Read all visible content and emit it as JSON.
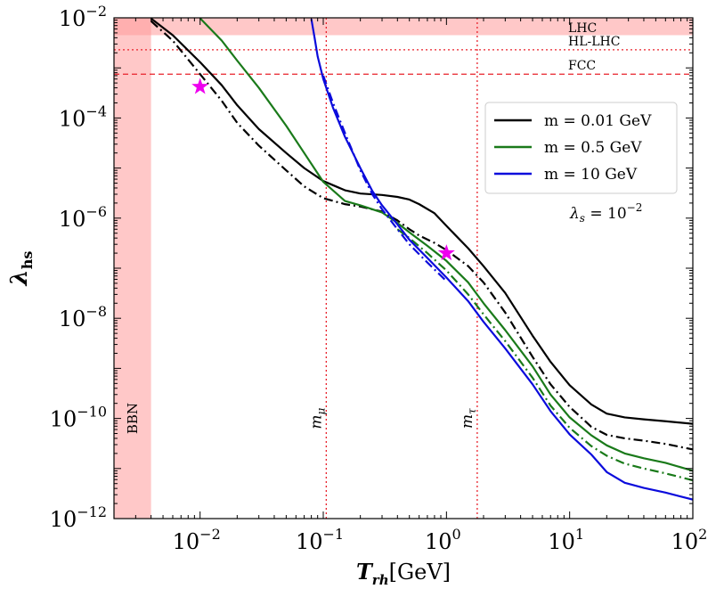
{
  "chart_data": {
    "type": "line",
    "x_scale": "log",
    "y_scale": "log",
    "xlim": [
      0.002,
      100
    ],
    "ylim": [
      1e-12,
      0.01
    ],
    "xlabel": {
      "main": "T",
      "sub": "rh",
      "unit": "[GeV]"
    },
    "ylabel": {
      "main": "λ",
      "sub": "hs"
    },
    "x_ticks": [
      {
        "value": 0.01,
        "base": "10",
        "exp": "−2"
      },
      {
        "value": 0.1,
        "base": "10",
        "exp": "−1"
      },
      {
        "value": 1,
        "base": "10",
        "exp": "0"
      },
      {
        "value": 10,
        "base": "10",
        "exp": "1"
      },
      {
        "value": 100,
        "base": "10",
        "exp": "2"
      }
    ],
    "y_ticks": [
      {
        "value": 1e-12,
        "base": "10",
        "exp": "−12"
      },
      {
        "value": 1e-10,
        "base": "10",
        "exp": "−10"
      },
      {
        "value": 1e-08,
        "base": "10",
        "exp": "−8"
      },
      {
        "value": 1e-06,
        "base": "10",
        "exp": "−6"
      },
      {
        "value": 0.0001,
        "base": "10",
        "exp": "−4"
      },
      {
        "value": 0.01,
        "base": "10",
        "exp": "−2"
      }
    ],
    "grid": false,
    "legend_position": "top-right",
    "series": [
      {
        "name": "m = 0.01 GeV",
        "legend": true,
        "color": "#000000",
        "dash": "solid",
        "points": [
          [
            0.004,
            0.0097
          ],
          [
            0.006,
            0.0045
          ],
          [
            0.01,
            0.0013
          ],
          [
            0.015,
            0.00045
          ],
          [
            0.02,
            0.00018
          ],
          [
            0.03,
            6e-05
          ],
          [
            0.05,
            2e-05
          ],
          [
            0.07,
            1e-05
          ],
          [
            0.1,
            5.5e-06
          ],
          [
            0.15,
            3.6e-06
          ],
          [
            0.2,
            3.1e-06
          ],
          [
            0.3,
            2.9e-06
          ],
          [
            0.4,
            2.65e-06
          ],
          [
            0.5,
            2.35e-06
          ],
          [
            0.6,
            1.9e-06
          ],
          [
            0.8,
            1.25e-06
          ],
          [
            1.0,
            7e-07
          ],
          [
            1.5,
            2.5e-07
          ],
          [
            2,
            1.1e-07
          ],
          [
            3,
            3.2e-08
          ],
          [
            5,
            4.5e-09
          ],
          [
            7,
            1.35e-09
          ],
          [
            10,
            4.6e-10
          ],
          [
            15,
            1.9e-10
          ],
          [
            20,
            1.25e-10
          ],
          [
            28,
            1.05e-10
          ],
          [
            40,
            9.6e-11
          ],
          [
            60,
            8.8e-11
          ],
          [
            100,
            7.8e-11
          ]
        ]
      },
      {
        "name": "m = 0.01 GeV",
        "legend": false,
        "color": "#000000",
        "dash": "dashdot",
        "points": [
          [
            0.004,
            0.0086
          ],
          [
            0.006,
            0.0035
          ],
          [
            0.01,
            0.00075
          ],
          [
            0.015,
            0.00022
          ],
          [
            0.02,
            8e-05
          ],
          [
            0.03,
            2.8e-05
          ],
          [
            0.05,
            9e-06
          ],
          [
            0.07,
            4.3e-06
          ],
          [
            0.1,
            2.5e-06
          ],
          [
            0.15,
            1.9e-06
          ],
          [
            0.2,
            1.7e-06
          ],
          [
            0.3,
            1.35e-06
          ],
          [
            0.4,
            9e-07
          ],
          [
            0.5,
            6e-07
          ],
          [
            0.6,
            4.5e-07
          ],
          [
            0.8,
            3.2e-07
          ],
          [
            1.0,
            2.3e-07
          ],
          [
            1.5,
            1.1e-07
          ],
          [
            2,
            5.2e-08
          ],
          [
            3,
            1.3e-08
          ],
          [
            5,
            1.7e-09
          ],
          [
            7,
            4.8e-10
          ],
          [
            10,
            1.7e-10
          ],
          [
            15,
            6.8e-11
          ],
          [
            20,
            4.7e-11
          ],
          [
            28,
            4e-11
          ],
          [
            40,
            3.6e-11
          ],
          [
            60,
            3.1e-11
          ],
          [
            100,
            2.4e-11
          ]
        ]
      },
      {
        "name": "m = 0.5 GeV",
        "legend": true,
        "color": "#1a7a1a",
        "dash": "solid",
        "points": [
          [
            0.01,
            0.0098
          ],
          [
            0.015,
            0.0035
          ],
          [
            0.02,
            0.0014
          ],
          [
            0.03,
            0.0004
          ],
          [
            0.05,
            7e-05
          ],
          [
            0.07,
            2e-05
          ],
          [
            0.1,
            5.3e-06
          ],
          [
            0.15,
            2.2e-06
          ],
          [
            0.2,
            1.8e-06
          ],
          [
            0.3,
            1.3e-06
          ],
          [
            0.4,
            8e-07
          ],
          [
            0.5,
            5.2e-07
          ],
          [
            0.7,
            2.8e-07
          ],
          [
            1.0,
            1.4e-07
          ],
          [
            1.5,
            5.2e-08
          ],
          [
            2,
            2e-08
          ],
          [
            3,
            5.8e-09
          ],
          [
            5,
            1.1e-09
          ],
          [
            7,
            3e-10
          ],
          [
            10,
            1.05e-10
          ],
          [
            15,
            4.6e-11
          ],
          [
            20,
            2.9e-11
          ],
          [
            28,
            2e-11
          ],
          [
            40,
            1.6e-11
          ],
          [
            60,
            1.3e-11
          ],
          [
            100,
            9e-12
          ]
        ]
      },
      {
        "name": "m = 0.5 GeV",
        "legend": false,
        "color": "#1a7a1a",
        "dash": "dashdot",
        "points": [
          [
            0.4,
            6e-07
          ],
          [
            0.5,
            4e-07
          ],
          [
            0.7,
            2e-07
          ],
          [
            1.0,
            9e-08
          ],
          [
            1.5,
            3e-08
          ],
          [
            2,
            1.2e-08
          ],
          [
            3,
            3.5e-09
          ],
          [
            5,
            6.5e-10
          ],
          [
            7,
            1.8e-10
          ],
          [
            10,
            6.5e-11
          ],
          [
            15,
            2.8e-11
          ],
          [
            20,
            1.8e-11
          ],
          [
            28,
            1.25e-11
          ],
          [
            40,
            1e-11
          ],
          [
            60,
            8e-12
          ],
          [
            100,
            5.8e-12
          ]
        ]
      },
      {
        "name": "m = 10 GeV",
        "legend": true,
        "color": "#0b0bdc",
        "dash": "solid",
        "points": [
          [
            0.08,
            0.0095
          ],
          [
            0.085,
            0.004
          ],
          [
            0.09,
            0.0017
          ],
          [
            0.1,
            0.0006
          ],
          [
            0.12,
            0.00016
          ],
          [
            0.15,
            4.2e-05
          ],
          [
            0.2,
            1e-05
          ],
          [
            0.25,
            3.5e-06
          ],
          [
            0.3,
            1.8e-06
          ],
          [
            0.4,
            7.5e-07
          ],
          [
            0.5,
            3.7e-07
          ],
          [
            0.7,
            1.6e-07
          ],
          [
            1.0,
            6.5e-08
          ],
          [
            1.5,
            2.2e-08
          ],
          [
            2,
            8.5e-09
          ],
          [
            3,
            2.5e-09
          ],
          [
            5,
            4.8e-10
          ],
          [
            7,
            1.4e-10
          ],
          [
            10,
            4.8e-11
          ],
          [
            15,
            1.9e-11
          ],
          [
            20,
            8.5e-12
          ],
          [
            28,
            5.2e-12
          ],
          [
            40,
            4.1e-12
          ],
          [
            60,
            3.3e-12
          ],
          [
            100,
            2.4e-12
          ]
        ]
      },
      {
        "name": "m = 10 GeV",
        "legend": false,
        "color": "#0b0bdc",
        "dash": "dashdot",
        "points": [
          [
            0.1,
            0.0007
          ],
          [
            0.12,
            0.0002
          ],
          [
            0.15,
            5e-05
          ],
          [
            0.2,
            9e-06
          ],
          [
            0.25,
            3e-06
          ],
          [
            0.3,
            1.5e-06
          ],
          [
            0.4,
            6e-07
          ],
          [
            0.5,
            3e-07
          ],
          [
            0.7,
            1.3e-07
          ],
          [
            1.0,
            5.5e-08
          ]
        ]
      }
    ],
    "shaded_regions": [
      {
        "label": "BBN",
        "axis": "x",
        "from": 0.002,
        "to": 0.004,
        "color": "#ff9a9a",
        "opacity": 0.55
      },
      {
        "label": "LHC",
        "axis": "y",
        "from": 0.0045,
        "to": 0.01,
        "color": "#ff9a9a",
        "opacity": 0.55
      }
    ],
    "hlines": [
      {
        "label": "HL-LHC",
        "y": 0.0023,
        "color": "#e8202a",
        "dash": "dotted"
      },
      {
        "label": "FCC",
        "y": 0.00075,
        "color": "#e8202a",
        "dash": "dashed"
      }
    ],
    "vlines": [
      {
        "label_main": "m",
        "label_sub": "μ",
        "x": 0.1057,
        "color": "#e8202a",
        "dash": "dotted"
      },
      {
        "label_main": "m",
        "label_sub": "τ",
        "x": 1.777,
        "color": "#e8202a",
        "dash": "dotted"
      }
    ],
    "markers": [
      {
        "x": 0.01,
        "y": 0.00042,
        "symbol": "star",
        "color": "#ee00ee"
      },
      {
        "x": 1.0,
        "y": 2e-07,
        "symbol": "star",
        "color": "#ee00ee"
      }
    ],
    "annotations": [
      {
        "main": "λ",
        "sub": "s",
        "text": " = 10",
        "sup": "−2"
      }
    ]
  }
}
